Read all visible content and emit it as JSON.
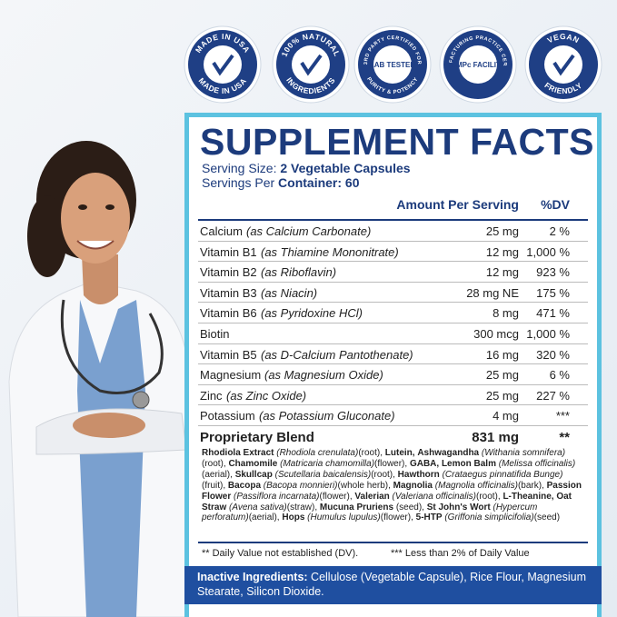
{
  "badges": [
    {
      "top": "MADE IN USA",
      "bottom": "MADE IN USA",
      "center": null
    },
    {
      "top": "100% NATURAL",
      "bottom": "INGREDIENTS",
      "center": null
    },
    {
      "top": "3RD PARTY CERTIFIED FOR",
      "bottom": "PURITY & POTENCY",
      "center": "LAB TESTED"
    },
    {
      "top": "GOOD MANUFACTURING PRACTICE CERTIFICATION",
      "bottom": null,
      "center": "GMPc FACILITY"
    },
    {
      "top": "VEGAN",
      "bottom": "FRIENDLY",
      "center": null
    }
  ],
  "facts": {
    "title": "SUPPLEMENT FACTS",
    "serving_size_label": "Serving Size:",
    "serving_size": "2 Vegetable Capsules",
    "servings_label": "Servings Per",
    "servings": "Container: 60",
    "header": {
      "amount": "Amount Per Serving",
      "dv": "%DV"
    },
    "rows": [
      {
        "name": "Calcium",
        "source": "(as Calcium Carbonate)",
        "amount": "25 mg",
        "dv": "2 %"
      },
      {
        "name": "Vitamin B1",
        "source": "(as Thiamine Mononitrate)",
        "amount": "12 mg",
        "dv": "1,000 %"
      },
      {
        "name": "Vitamin B2",
        "source": "(as Riboflavin)",
        "amount": "12 mg",
        "dv": "923 %"
      },
      {
        "name": "Vitamin B3",
        "source": "(as Niacin)",
        "amount": "28 mg NE",
        "dv": "175 %"
      },
      {
        "name": "Vitamin B6",
        "source": "(as Pyridoxine HCl)",
        "amount": "8 mg",
        "dv": "471 %"
      },
      {
        "name": "Biotin",
        "source": null,
        "amount": "300 mcg",
        "dv": "1,000 %"
      },
      {
        "name": "Vitamin B5",
        "source": "(as D-Calcium Pantothenate)",
        "amount": "16 mg",
        "dv": "320 %"
      },
      {
        "name": "Magnesium",
        "source": "(as Magnesium Oxide)",
        "amount": "25 mg",
        "dv": "6 %"
      },
      {
        "name": "Zinc",
        "source": "(as Zinc Oxide)",
        "amount": "25 mg",
        "dv": "227 %"
      },
      {
        "name": "Potassium",
        "source": "(as Potassium Gluconate)",
        "amount": "4 mg",
        "dv": "***"
      }
    ],
    "blend_row": {
      "name": "Proprietary Blend",
      "amount": "831 mg",
      "dv": "**"
    },
    "blend": [
      {
        "name": "Rhodiola Extract",
        "latin": "(Rhodiola crenulata)",
        "part": "(root),"
      },
      {
        "name": "Lutein,",
        "latin": null,
        "part": null
      },
      {
        "name": "Ashwagandha",
        "latin": "(Withania somnifera)",
        "part": "(root),"
      },
      {
        "name": "Chamomile",
        "latin": "(Matricaria chamomilla)",
        "part": "(flower),"
      },
      {
        "name": "GABA, Lemon Balm",
        "latin": "(Melissa officinalis)",
        "part": "(aerial),"
      },
      {
        "name": "Skullcap",
        "latin": "(Scutellaria baicalensis)",
        "part": "(root),"
      },
      {
        "name": "Hawthorn",
        "latin": "(Crataegus pinnatifida Bunge)",
        "part": "(fruit),"
      },
      {
        "name": "Bacopa",
        "latin": "(Bacopa monnieri)",
        "part": "(whole herb),"
      },
      {
        "name": "Magnolia",
        "latin": "(Magnolia officinalis)",
        "part": "(bark),"
      },
      {
        "name": "Passion Flower",
        "latin": "(Passiflora incarnata)",
        "part": "(flower),"
      },
      {
        "name": "Valerian",
        "latin": "(Valeriana officinalis)",
        "part": "(root),"
      },
      {
        "name": "L-Theanine, Oat Straw",
        "latin": "(Avena sativa)",
        "part": "(straw),"
      },
      {
        "name": "Mucuna Pruriens",
        "latin": null,
        "part": "(seed),"
      },
      {
        "name": "St John's Wort",
        "latin": "(Hypercum perforatum)",
        "part": "(aerial),"
      },
      {
        "name": "Hops",
        "latin": "(Humulus lupulus)",
        "part": "(flower),"
      },
      {
        "name": "5-HTP",
        "latin": "(Griffonia simplicifolia)",
        "part": "(seed)"
      }
    ],
    "footnotes": [
      "** Daily Value not established (DV).",
      "*** Less than 2% of Daily Value"
    ],
    "inactive_label": "Inactive Ingredients:",
    "inactive": "Cellulose (Vegetable Capsule), Rice Flour, Magnesium Stearate, Silicon Dioxide."
  }
}
